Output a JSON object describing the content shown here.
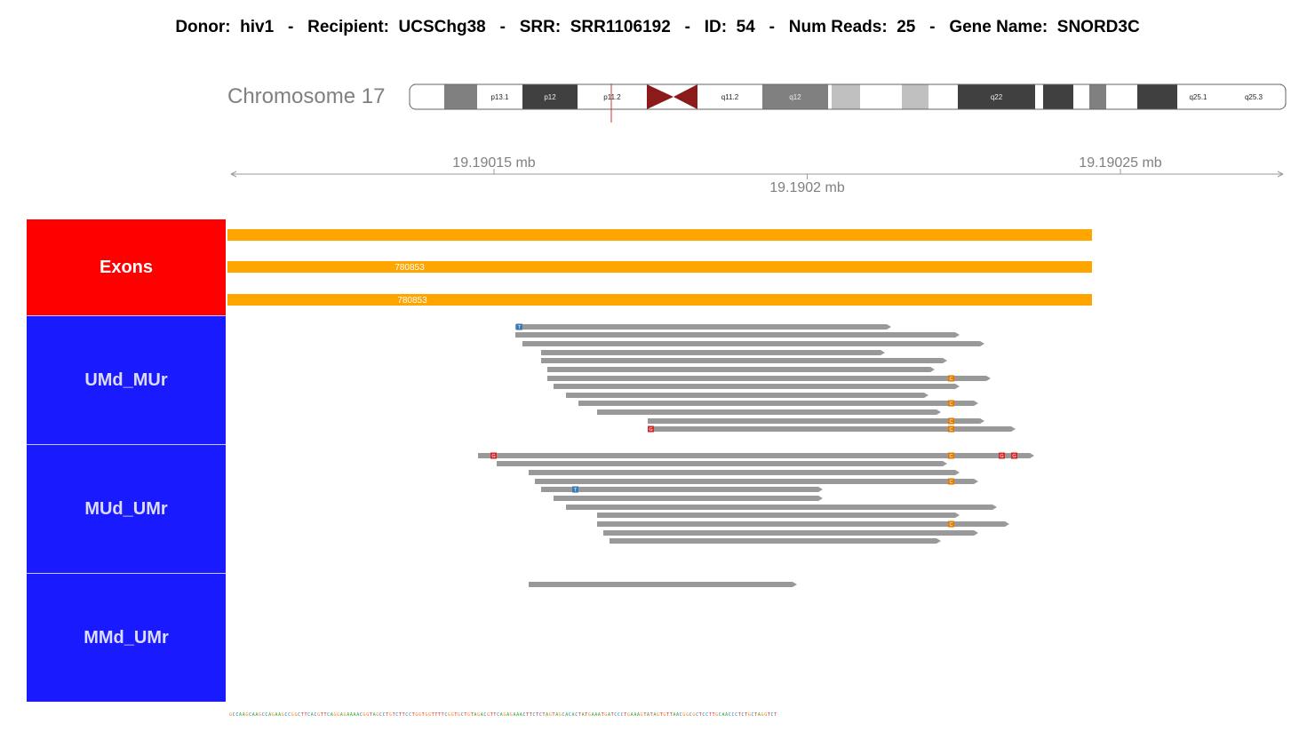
{
  "header": {
    "title": "Donor:  hiv1   -   Recipient:  UCSChg38   -   SRR:  SRR1106192   -   ID:  54   -   Num Reads:  25   -   Gene Name:  SNORD3C"
  },
  "chromosome": {
    "label": "Chromosome 17",
    "bands": [
      {
        "name": "",
        "color": "#ffffff"
      },
      {
        "name": "",
        "color": "#808080"
      },
      {
        "name": "p13.1",
        "color": "#ffffff"
      },
      {
        "name": "p12",
        "color": "#404040"
      },
      {
        "name": "p11.2",
        "color": "#ffffff"
      },
      {
        "name": "q11.2",
        "color": "#ffffff"
      },
      {
        "name": "q12",
        "color": "#808080"
      },
      {
        "name": "",
        "color": "#c0c0c0"
      },
      {
        "name": "",
        "color": "#ffffff"
      },
      {
        "name": "",
        "color": "#c0c0c0"
      },
      {
        "name": "q22",
        "color": "#404040"
      },
      {
        "name": "",
        "color": "#404040"
      },
      {
        "name": "",
        "color": "#808080"
      },
      {
        "name": "",
        "color": "#404040"
      },
      {
        "name": "q25.1",
        "color": "#ffffff"
      },
      {
        "name": "q25.3",
        "color": "#ffffff"
      }
    ],
    "centromere_color": "#8b1a1a",
    "marker_color": "#e03030"
  },
  "axis": {
    "ticks": [
      {
        "label": "19.19015 mb",
        "value": 19.19015
      },
      {
        "label": "19.1902 mb",
        "value": 19.1902
      },
      {
        "label": "19.19025 mb",
        "value": 19.19025
      }
    ]
  },
  "tracks": {
    "exons": {
      "label": "Exons",
      "color": "#ffa500",
      "features": [
        {
          "label": ""
        },
        {
          "label": "780853"
        },
        {
          "label": "780853"
        }
      ]
    },
    "umd_mur": {
      "label": "UMd_MUr"
    },
    "mud_umr": {
      "label": "MUd_UMr"
    },
    "mmd_umr": {
      "label": "MMd_UMr"
    }
  },
  "reads": {
    "color": "#999999",
    "mismatch_colors": {
      "T": "#3a7ab8",
      "C": "#e07b00",
      "G": "#d62728",
      "A": "#2ca02c"
    }
  },
  "sequence": {
    "text": "GCCAAGCAAGCCAGAAGCCGGCTTCACGTTCAGGAGAAAACGGTAGCCTGTCTTCCTGGTGGTTTTCGGTGCTGTAGACGTTCAGAGAAACTTCTCTAGTAGCACACTATGAAATGATCCCTGAAAGTATAGTGTTAACGGCGCTCCTTGCAACCCTCTGCTAGGTCT"
  }
}
